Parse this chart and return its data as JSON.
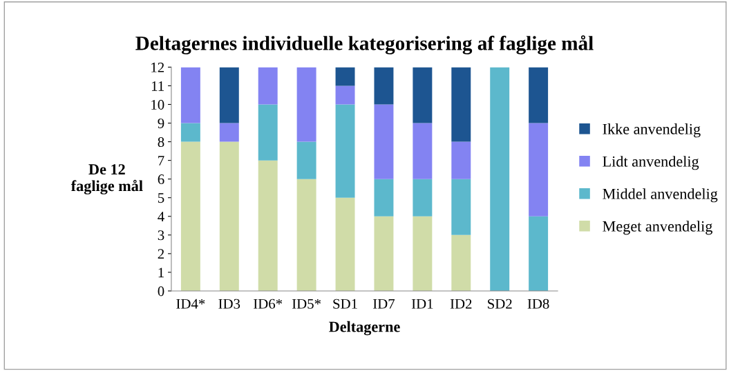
{
  "chart_data": {
    "type": "bar",
    "stacked": true,
    "title": "Deltagernes individuelle kategorisering af faglige mål",
    "xlabel": "Deltagerne",
    "ylabel": "De 12\nfaglige mål",
    "categories": [
      "ID4*",
      "ID3",
      "ID6*",
      "ID5*",
      "SD1",
      "ID7",
      "ID1",
      "ID2",
      "SD2",
      "ID8"
    ],
    "series": [
      {
        "name": "Meget anvendelig",
        "color": "#d0dca8",
        "values": [
          8,
          8,
          7,
          6,
          5,
          4,
          4,
          3,
          0,
          0
        ]
      },
      {
        "name": "Middel anvendelig",
        "color": "#5cb8cc",
        "values": [
          1,
          0,
          3,
          2,
          5,
          2,
          2,
          3,
          12,
          4
        ]
      },
      {
        "name": "Lidt anvendelig",
        "color": "#8383f2",
        "values": [
          3,
          1,
          2,
          4,
          1,
          4,
          3,
          2,
          0,
          5
        ]
      },
      {
        "name": "Ikke anvendelig",
        "color": "#1d5591",
        "values": [
          0,
          3,
          0,
          0,
          1,
          2,
          3,
          4,
          0,
          3
        ]
      }
    ],
    "ylim": [
      0,
      12
    ],
    "yticks": [
      0,
      1,
      2,
      3,
      4,
      5,
      6,
      7,
      8,
      9,
      10,
      11,
      12
    ],
    "grid": false,
    "legend": "right"
  }
}
